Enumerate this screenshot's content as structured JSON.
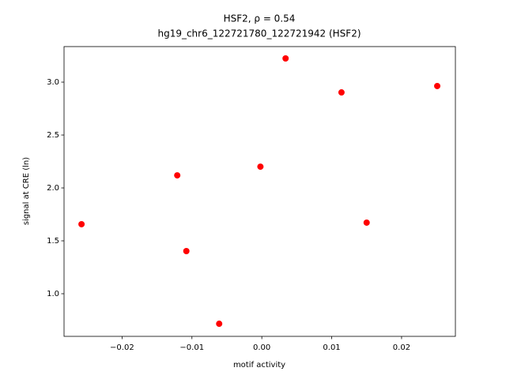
{
  "chart_data": {
    "type": "scatter",
    "title": "HSF2, ρ = 0.54",
    "subtitle": "hg19_chr6_122721780_122721942 (HSF2)",
    "x_label": "motif activity",
    "y_label": "signal at CRE (ln)",
    "color": "#ff0000",
    "x": [
      -0.0258,
      -0.0121,
      -0.0108,
      -0.0061,
      -0.0002,
      0.0034,
      0.0114,
      0.015,
      0.0251
    ],
    "values": [
      1.657,
      2.119,
      1.403,
      0.716,
      2.201,
      3.224,
      2.903,
      1.672,
      2.963
    ],
    "xlim": [
      -0.0283,
      0.0277
    ],
    "ylim": [
      0.597,
      3.336
    ],
    "xticks": [
      {
        "value": -0.02,
        "label": "−0.02"
      },
      {
        "value": -0.01,
        "label": "−0.01"
      },
      {
        "value": 0,
        "label": "0.00"
      },
      {
        "value": 0.01,
        "label": "0.01"
      },
      {
        "value": 0.02,
        "label": "0.02"
      }
    ],
    "yticks": [
      {
        "value": 1,
        "label": "1.0"
      },
      {
        "value": 1.5,
        "label": "1.5"
      },
      {
        "value": 2,
        "label": "2.0"
      },
      {
        "value": 2.5,
        "label": "2.5"
      },
      {
        "value": 3,
        "label": "3.0"
      }
    ]
  }
}
